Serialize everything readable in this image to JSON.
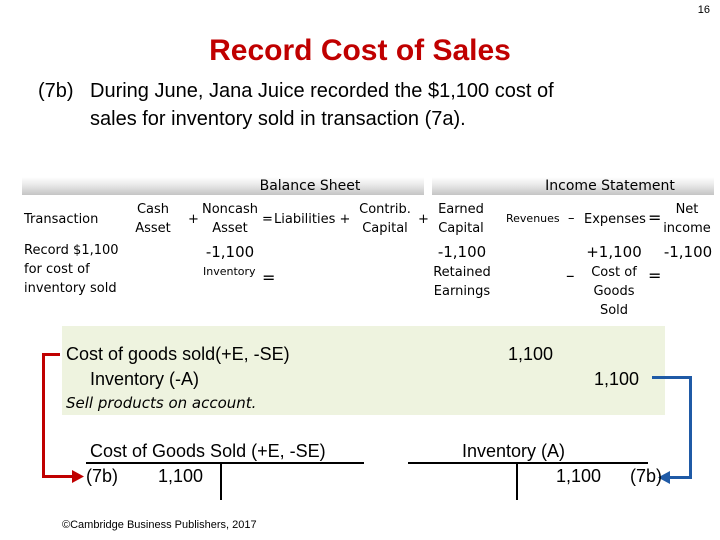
{
  "slide": {
    "number": "16",
    "title": "Record Cost of Sales",
    "intro_label": "(7b)",
    "intro_line1": "During June, Jana Juice recorded the $1,100 cost of",
    "intro_line2": "sales for inventory sold in transaction (7a)."
  },
  "fin_table": {
    "balance_sheet_label": "Balance Sheet",
    "income_statement_label": "Income Statement",
    "transaction_header": "Transaction",
    "cash_header": [
      "Cash",
      "Asset"
    ],
    "plus": "+",
    "noncash_header": [
      "Noncash",
      "Asset"
    ],
    "equals": "=",
    "liabilities_header": "Liabilities +",
    "contrib_header": [
      "Contrib.",
      "Capital"
    ],
    "earned_header": [
      "Earned",
      "Capital"
    ],
    "revenues_header": "Revenues",
    "minus": "–",
    "expenses_header": "Expenses",
    "net_header": [
      "Net",
      "income"
    ],
    "row_desc": [
      "Record $1,100",
      "for cost of",
      "inventory sold"
    ],
    "noncash_value": "-1,100",
    "noncash_note": "Inventory",
    "earned_value": "-1,100",
    "earned_note": [
      "Retained",
      "Earnings"
    ],
    "expenses_value": "+1,100",
    "expenses_note": [
      "Cost of",
      "Goods",
      "Sold"
    ],
    "net_value": "-1,100"
  },
  "journal_entry": {
    "debit_account": "Cost of goods sold(+E, -SE)",
    "debit_amount": "1,100",
    "credit_account": "Inventory (-A)",
    "credit_amount": "1,100",
    "explanation": "Sell products on account."
  },
  "t_accounts": {
    "cogs": {
      "title": "Cost of Goods Sold (+E, -SE)",
      "ref": "(7b)",
      "amount": "1,100"
    },
    "inventory": {
      "title": "Inventory (A)",
      "amount": "1,100",
      "ref": "(7b)"
    }
  },
  "footer": {
    "copyright": "©Cambridge Business Publishers, 2017"
  },
  "colors": {
    "title": "#c00000",
    "red_arrow": "#c00000",
    "blue_arrow": "#1f5aa6",
    "journal_box": "#eef3df"
  }
}
